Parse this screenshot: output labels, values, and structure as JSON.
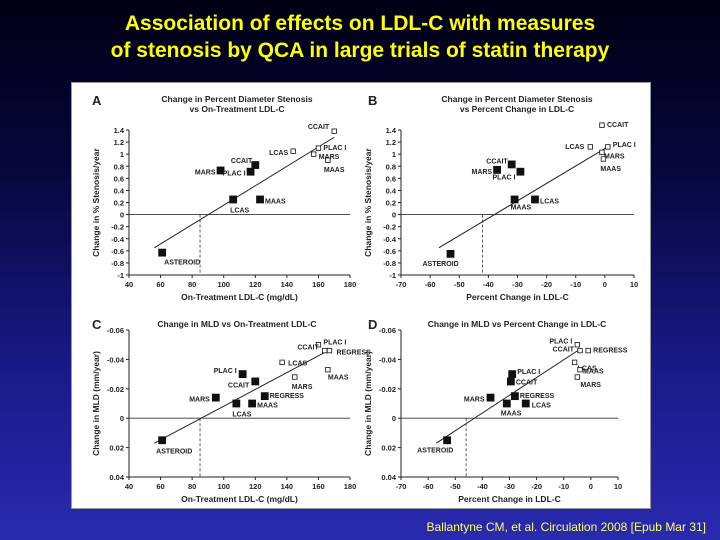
{
  "slide": {
    "title_line1": "Association of effects on LDL-C with measures",
    "title_line2": "of stenosis by QCA in large trials of statin therapy",
    "citation": "Ballantyne CM, et al. Circulation 2008 [Epub Mar 31]"
  },
  "colors": {
    "title": "#ffff00",
    "background_top": "#000014",
    "background_bottom": "#2a2ab0"
  },
  "chart_data": [
    {
      "panel": "A",
      "type": "scatter",
      "title": "Change in Percent Diameter Stenosis\nvs On-Treatment  LDL-C",
      "xlabel": "On-Treatment LDL-C (mg/dL)",
      "ylabel": "Change in % Stenosis/year",
      "xlim": [
        40,
        180
      ],
      "ylim": [
        -1,
        1.4
      ],
      "xticks": [
        40,
        60,
        80,
        100,
        120,
        140,
        160,
        180
      ],
      "yticks": [
        -1,
        -0.8,
        -0.6,
        -0.4,
        -0.2,
        0,
        0.2,
        0.4,
        0.6,
        0.8,
        1,
        1.2,
        1.4
      ],
      "points": [
        {
          "label": "ASTEROID",
          "x": 61,
          "y": -0.63,
          "filled": true
        },
        {
          "label": "MARS",
          "x": 98,
          "y": 0.73,
          "filled": true
        },
        {
          "label": "CCAIT",
          "x": 120,
          "y": 0.82,
          "filled": true
        },
        {
          "label": "PLAC I",
          "x": 117,
          "y": 0.71,
          "filled": true
        },
        {
          "label": "LCAS",
          "x": 106,
          "y": 0.25,
          "filled": true
        },
        {
          "label": "MAAS",
          "x": 123,
          "y": 0.25,
          "filled": true
        },
        {
          "label": "LCAS",
          "x": 144,
          "y": 1.05,
          "filled": false
        },
        {
          "label": "CCAIT",
          "x": 170,
          "y": 1.38,
          "filled": false
        },
        {
          "label": "PLAC I",
          "x": 160,
          "y": 1.1,
          "filled": false
        },
        {
          "label": "MARS",
          "x": 157,
          "y": 1.0,
          "filled": false
        },
        {
          "label": "MAAS",
          "x": 166,
          "y": 0.9,
          "filled": false
        }
      ],
      "regression": [
        [
          56,
          -0.55
        ],
        [
          170,
          1.28
        ]
      ],
      "zero_crossing": 85
    },
    {
      "panel": "B",
      "type": "scatter",
      "title": "Change in Percent Diameter Stenosis\nvs Percent Change in LDL-C",
      "xlabel": "Percent Change in LDL-C",
      "ylabel": "Change in % Stenosis/year",
      "xlim": [
        -70,
        10
      ],
      "ylim": [
        -1,
        1.4
      ],
      "xticks": [
        -70,
        -60,
        -50,
        -40,
        -30,
        -20,
        -10,
        0,
        10
      ],
      "yticks": [
        -1,
        -0.8,
        -0.6,
        -0.4,
        -0.2,
        0,
        0.2,
        0.4,
        0.6,
        0.8,
        1,
        1.2,
        1.4
      ],
      "points": [
        {
          "label": "ASTEROID",
          "x": -53,
          "y": -0.65,
          "filled": true
        },
        {
          "label": "MARS",
          "x": -37,
          "y": 0.74,
          "filled": true
        },
        {
          "label": "CCAIT",
          "x": -32,
          "y": 0.83,
          "filled": true
        },
        {
          "label": "PLAC I",
          "x": -29,
          "y": 0.71,
          "filled": true
        },
        {
          "label": "MAAS",
          "x": -31,
          "y": 0.25,
          "filled": true
        },
        {
          "label": "LCAS",
          "x": -24,
          "y": 0.25,
          "filled": true
        },
        {
          "label": "CCAIT",
          "x": -1,
          "y": 1.48,
          "filled": false
        },
        {
          "label": "LCAS",
          "x": -5,
          "y": 1.12,
          "filled": false
        },
        {
          "label": "PLAC I",
          "x": 1,
          "y": 1.12,
          "filled": false
        },
        {
          "label": "MARS",
          "x": -1,
          "y": 1.03,
          "filled": false
        },
        {
          "label": "MAAS",
          "x": -0.5,
          "y": 0.92,
          "filled": false
        }
      ],
      "regression": [
        [
          -57,
          -0.55
        ],
        [
          2,
          1.15
        ]
      ],
      "zero_crossing": -42
    },
    {
      "panel": "C",
      "type": "scatter",
      "title": "Change in MLD vs On-Treatment LDL-C",
      "xlabel": "On-Treatment LDL-C (mg/dL)",
      "ylabel": "Change in MLD (mm/year)",
      "xlim": [
        40,
        180
      ],
      "ylim": [
        0.04,
        -0.06
      ],
      "xticks": [
        40,
        60,
        80,
        100,
        120,
        140,
        160,
        180
      ],
      "yticks": [
        0.04,
        0.02,
        0,
        -0.02,
        -0.04,
        -0.06
      ],
      "points": [
        {
          "label": "ASTEROID",
          "x": 61,
          "y": 0.015,
          "filled": true
        },
        {
          "label": "MARS",
          "x": 95,
          "y": -0.014,
          "filled": true
        },
        {
          "label": "PLAC I",
          "x": 112,
          "y": -0.03,
          "filled": true
        },
        {
          "label": "CCAIT",
          "x": 120,
          "y": -0.025,
          "filled": true
        },
        {
          "label": "REGRESS",
          "x": 126,
          "y": -0.015,
          "filled": true
        },
        {
          "label": "LCAS",
          "x": 108,
          "y": -0.01,
          "filled": true
        },
        {
          "label": "MAAS",
          "x": 118,
          "y": -0.01,
          "filled": true
        },
        {
          "label": "LCAS",
          "x": 137,
          "y": -0.038,
          "filled": false
        },
        {
          "label": "PLAC I",
          "x": 160,
          "y": -0.05,
          "filled": false
        },
        {
          "label": "CCAIT",
          "x": 164,
          "y": -0.046,
          "filled": false
        },
        {
          "label": "REGRESS",
          "x": 167,
          "y": -0.046,
          "filled": false
        },
        {
          "label": "MAAS",
          "x": 166,
          "y": -0.033,
          "filled": false
        },
        {
          "label": "MARS",
          "x": 145,
          "y": -0.028,
          "filled": false
        }
      ],
      "regression": [
        [
          56,
          0.017
        ],
        [
          168,
          -0.047
        ]
      ],
      "zero_crossing": 85
    },
    {
      "panel": "D",
      "type": "scatter",
      "title": "Change in MLD vs Percent Change in LDL-C",
      "xlabel": "Percent Change in LDL-C",
      "ylabel": "Change in MLD (mm/year)",
      "xlim": [
        -70,
        10
      ],
      "ylim": [
        0.04,
        -0.06
      ],
      "xticks": [
        -70,
        -60,
        -50,
        -40,
        -30,
        -20,
        -10,
        0,
        10
      ],
      "yticks": [
        0.04,
        0.02,
        0,
        -0.02,
        -0.04,
        -0.06
      ],
      "points": [
        {
          "label": "ASTEROID",
          "x": -53,
          "y": 0.015,
          "filled": true
        },
        {
          "label": "MARS",
          "x": -37,
          "y": -0.014,
          "filled": true
        },
        {
          "label": "PLAC I",
          "x": -29,
          "y": -0.03,
          "filled": true
        },
        {
          "label": "CCAIT",
          "x": -29.5,
          "y": -0.025,
          "filled": true
        },
        {
          "label": "REGRESS",
          "x": -28,
          "y": -0.015,
          "filled": true
        },
        {
          "label": "MAAS",
          "x": -31,
          "y": -0.01,
          "filled": true
        },
        {
          "label": "LCAS",
          "x": -24,
          "y": -0.01,
          "filled": true
        },
        {
          "label": "PLAC I",
          "x": -5,
          "y": -0.05,
          "filled": false
        },
        {
          "label": "CCAIT",
          "x": -4,
          "y": -0.046,
          "filled": false
        },
        {
          "label": "REGRESS",
          "x": -1,
          "y": -0.046,
          "filled": false
        },
        {
          "label": "LCAS",
          "x": -6,
          "y": -0.038,
          "filled": false
        },
        {
          "label": "MAAS",
          "x": -4,
          "y": -0.033,
          "filled": false
        },
        {
          "label": "MARS",
          "x": -5,
          "y": -0.028,
          "filled": false
        }
      ],
      "regression": [
        [
          -57,
          0.017
        ],
        [
          -4,
          -0.047
        ]
      ],
      "zero_crossing": -46
    }
  ]
}
